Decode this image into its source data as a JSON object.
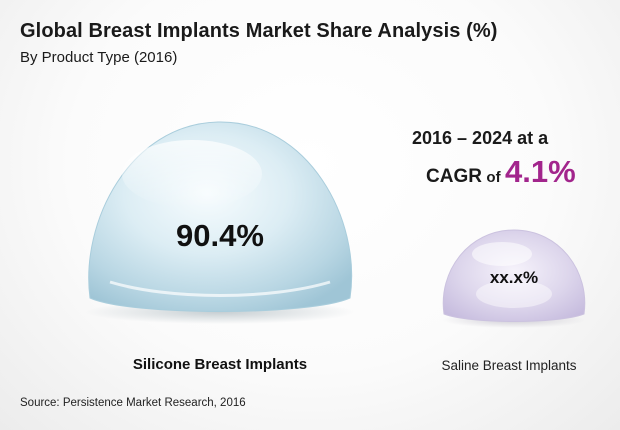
{
  "title": "Global Breast Implants Market Share Analysis (%)",
  "subtitle": "By Product Type (2016)",
  "cagr": {
    "period": "2016 – 2024 at a",
    "label": "CAGR",
    "of": "of",
    "value": "4.1%",
    "value_color": "#a2258c"
  },
  "source": "Source: Persistence Market Research, 2016",
  "chart_data": {
    "type": "bar",
    "title": "Global Breast Implants Market Share Analysis (%)",
    "subtitle": "By Product Type (2016)",
    "categories": [
      "Silicone Breast Implants",
      "Saline Breast Implants"
    ],
    "values": [
      90.4,
      null
    ],
    "value_labels": [
      "90.4%",
      "xx.x%"
    ],
    "unit": "%",
    "grid": false,
    "legend": "none"
  }
}
